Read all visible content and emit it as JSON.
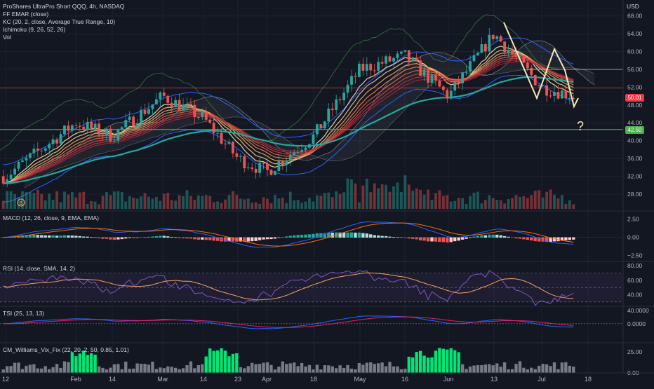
{
  "instrument": {
    "title": "ProShares UltraPro Short QQQ, 4h, NASDAQ",
    "currency": "USD",
    "last_price": "50.01",
    "support_level": "42.50"
  },
  "legend": {
    "ff_emar": "FF EMAR (close)",
    "kc": "KC (20, 2, close, Average True Range, 10)",
    "ichimoku": "Ichimoku (9, 26, 52, 26)",
    "vol": "Vol",
    "macd": "MACD (12, 26, close, 9, EMA, EMA)",
    "rsi": "RSI (14, close, SMA, 14, 2)",
    "tsi": "TSI (25, 13, 13)",
    "vix_fix": "CM_Williams_Vix_Fix (22, 20, 2, 50, 0.85, 1.01)"
  },
  "annotations": {
    "question_mark": "?",
    "dividend_marker": "$"
  },
  "x_axis": {
    "ticks": [
      "12",
      "Feb",
      "14",
      "Mar",
      "14",
      "23",
      "Apr",
      "18",
      "May",
      "16",
      "Jun",
      "13",
      "Jul",
      "18"
    ]
  },
  "colors": {
    "background": "#131722",
    "grid": "#1e222d",
    "up": "#26a69a",
    "down": "#ef5350",
    "ema_base": "#26a69a",
    "kc": "#2962ff",
    "ichimoku": "#4caf50",
    "macd_line": "#2962ff",
    "signal_line": "#ff6d00",
    "rsi_line": "#7e57c2",
    "rsi_ma": "#f7a35c",
    "tsi_line": "#2962ff",
    "tsi_signal": "#e91e63",
    "vix_green": "#00e676",
    "vix_gray": "#787b86",
    "drawing": "#f7e7b4",
    "price_badge": "#f23645",
    "support_badge": "#4caf50"
  },
  "chart_data": [
    {
      "type": "candlestick",
      "title": "ProShares UltraPro Short QQQ, 4h, NASDAQ",
      "ylabel": "USD",
      "ylim": [
        25,
        70
      ],
      "y_ticks": [
        "28.00",
        "32.00",
        "36.00",
        "40.00",
        "44.00",
        "48.00",
        "52.00",
        "56.00",
        "60.00",
        "64.00",
        "68.00"
      ],
      "key_points": {
        "x": [
          "12",
          "Feb",
          "14",
          "Mar",
          "14",
          "23",
          "Apr",
          "18",
          "May",
          "16",
          "Jun",
          "13",
          "Jul"
        ],
        "close": [
          32,
          44,
          41,
          50,
          45,
          36,
          33,
          41,
          56,
          59,
          50,
          64,
          52
        ]
      },
      "last_price": 50.01,
      "horizontal_levels": [
        56.0,
        51.8,
        42.5
      ],
      "indicators": [
        "FF EMAR (close)",
        "KC (20, 2, close, Average True Range, 10)",
        "Ichimoku (9, 26, 52, 26)",
        "Vol"
      ]
    },
    {
      "type": "bar+line",
      "title": "MACD (12, 26, close, 9, EMA, EMA)",
      "ylim": [
        -3.2,
        3.5
      ],
      "y_ticks": [
        "2.50",
        "0.00",
        "−2.50"
      ],
      "series": [
        {
          "name": "MACD"
        },
        {
          "name": "Signal"
        },
        {
          "name": "Histogram"
        }
      ]
    },
    {
      "type": "line",
      "title": "RSI (14, close, SMA, 14, 2)",
      "ylim": [
        25,
        85
      ],
      "y_ticks": [
        "80.00",
        "60.00",
        "40.00"
      ],
      "bands": [
        70,
        50,
        30
      ]
    },
    {
      "type": "line",
      "title": "TSI (25, 13, 13)",
      "ylim": [
        -55,
        50
      ],
      "y_ticks": [
        "40.0000",
        "0.0000"
      ]
    },
    {
      "type": "bar",
      "title": "CM_Williams_Vix_Fix (22, 20, 2, 50, 0.85, 1.01)",
      "ylim": [
        0,
        35
      ],
      "y_ticks": [
        "25.00",
        "0.00"
      ]
    }
  ]
}
